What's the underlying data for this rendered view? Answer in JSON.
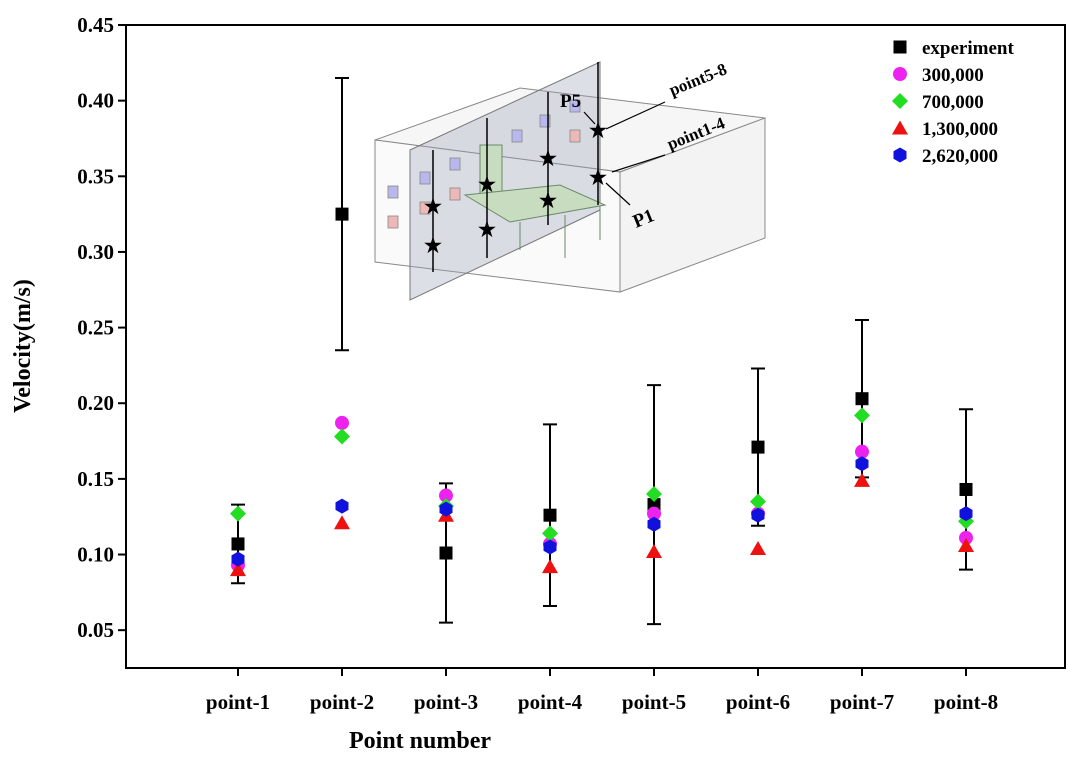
{
  "chart_data": {
    "type": "scatter",
    "xlabel": "Point number",
    "ylabel": "Velocity(m/s)",
    "categories": [
      "point-1",
      "point-2",
      "point-3",
      "point-4",
      "point-5",
      "point-6",
      "point-7",
      "point-8"
    ],
    "ylim": [
      0.025,
      0.45
    ],
    "yticks": [
      {
        "value": 0.05,
        "label": "0.05"
      },
      {
        "value": 0.1,
        "label": "0.10"
      },
      {
        "value": 0.15,
        "label": "0.15"
      },
      {
        "value": 0.2,
        "label": "0.20"
      },
      {
        "value": 0.25,
        "label": "0.25"
      },
      {
        "value": 0.3,
        "label": "0.30"
      },
      {
        "value": 0.35,
        "label": "0.35"
      },
      {
        "value": 0.4,
        "label": "0.40"
      },
      {
        "value": 0.45,
        "label": "0.45"
      }
    ],
    "legend": "upper right",
    "series": [
      {
        "name": "experiment",
        "color": "#000000",
        "marker": "square",
        "values": [
          0.107,
          0.325,
          0.101,
          0.126,
          0.133,
          0.171,
          0.203,
          0.143
        ],
        "errors": [
          0.026,
          0.09,
          0.046,
          0.06,
          0.079,
          0.052,
          0.052,
          0.053
        ]
      },
      {
        "name": "300,000",
        "color": "#ee22ee",
        "marker": "circle",
        "values": [
          0.093,
          0.187,
          0.139,
          0.107,
          0.127,
          0.127,
          0.168,
          0.111
        ]
      },
      {
        "name": "700,000",
        "color": "#22dd22",
        "marker": "diamond",
        "values": [
          0.127,
          0.178,
          0.132,
          0.114,
          0.14,
          0.135,
          0.192,
          0.122
        ]
      },
      {
        "name": "1,300,000",
        "color": "#ee1111",
        "marker": "triangle",
        "values": [
          0.09,
          0.121,
          0.126,
          0.092,
          0.102,
          0.104,
          0.149,
          0.106
        ]
      },
      {
        "name": "2,620,000",
        "color": "#1111dd",
        "marker": "hexagon",
        "values": [
          0.097,
          0.132,
          0.13,
          0.105,
          0.12,
          0.126,
          0.16,
          0.127
        ]
      }
    ],
    "annotations": [
      "P5",
      "point5-8",
      "point1-4",
      "P1"
    ]
  }
}
